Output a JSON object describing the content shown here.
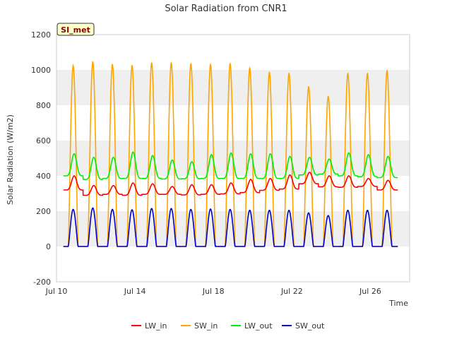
{
  "chart_data": {
    "type": "line",
    "title": "Solar Radiation from CNR1",
    "badge": "SI_met",
    "xlabel": "Time",
    "ylabel": "Solar Radiation (W/m2)",
    "ylim": [
      -200,
      1200
    ],
    "yticks": [
      -200,
      0,
      200,
      400,
      600,
      800,
      1000,
      1200
    ],
    "xlim": [
      "2024-07-10",
      "2024-07-28"
    ],
    "xticks": [
      {
        "date": "2024-07-10",
        "label": "Jul 10"
      },
      {
        "date": "2024-07-14",
        "label": "Jul 14"
      },
      {
        "date": "2024-07-18",
        "label": "Jul 18"
      },
      {
        "date": "2024-07-22",
        "label": "Jul 22"
      },
      {
        "date": "2024-07-26",
        "label": "Jul 26"
      }
    ],
    "grid": "horizontal-bands",
    "legend_position": "bottom",
    "colors": {
      "LW_in": "#ff0000",
      "SW_in": "#ffa500",
      "LW_out": "#00ee00",
      "SW_out": "#0000cc",
      "band": "#efefef",
      "badge_bg": "#ffffcc"
    },
    "series": [
      {
        "name": "LW_in",
        "baseline": [
          320,
          290,
          295,
          290,
          295,
          295,
          292,
          295,
          298,
          305,
          318,
          325,
          355,
          338,
          335,
          340,
          320
        ],
        "peak": [
          400,
          345,
          345,
          360,
          355,
          340,
          350,
          350,
          360,
          380,
          385,
          405,
          420,
          400,
          400,
          385,
          375
        ]
      },
      {
        "name": "SW_in",
        "baseline": [
          0,
          0,
          0,
          0,
          0,
          0,
          0,
          0,
          0,
          0,
          0,
          0,
          0,
          0,
          0,
          0,
          0
        ],
        "peak": [
          1025,
          1045,
          1030,
          1025,
          1040,
          1040,
          1035,
          1030,
          1035,
          1010,
          985,
          980,
          905,
          850,
          980,
          980,
          995
        ]
      },
      {
        "name": "LW_out",
        "baseline": [
          400,
          380,
          385,
          385,
          385,
          382,
          383,
          385,
          385,
          385,
          385,
          385,
          405,
          410,
          400,
          395,
          390
        ],
        "peak": [
          525,
          505,
          505,
          535,
          515,
          490,
          480,
          520,
          530,
          525,
          525,
          510,
          505,
          495,
          530,
          520,
          510
        ]
      },
      {
        "name": "SW_out",
        "baseline": [
          0,
          0,
          0,
          0,
          0,
          0,
          0,
          0,
          0,
          0,
          0,
          0,
          0,
          0,
          0,
          0,
          0
        ],
        "peak": [
          210,
          218,
          210,
          208,
          215,
          215,
          210,
          212,
          210,
          205,
          205,
          205,
          190,
          175,
          205,
          205,
          205
        ]
      }
    ]
  },
  "legend": {
    "items": [
      "LW_in",
      "SW_in",
      "LW_out",
      "SW_out"
    ]
  }
}
